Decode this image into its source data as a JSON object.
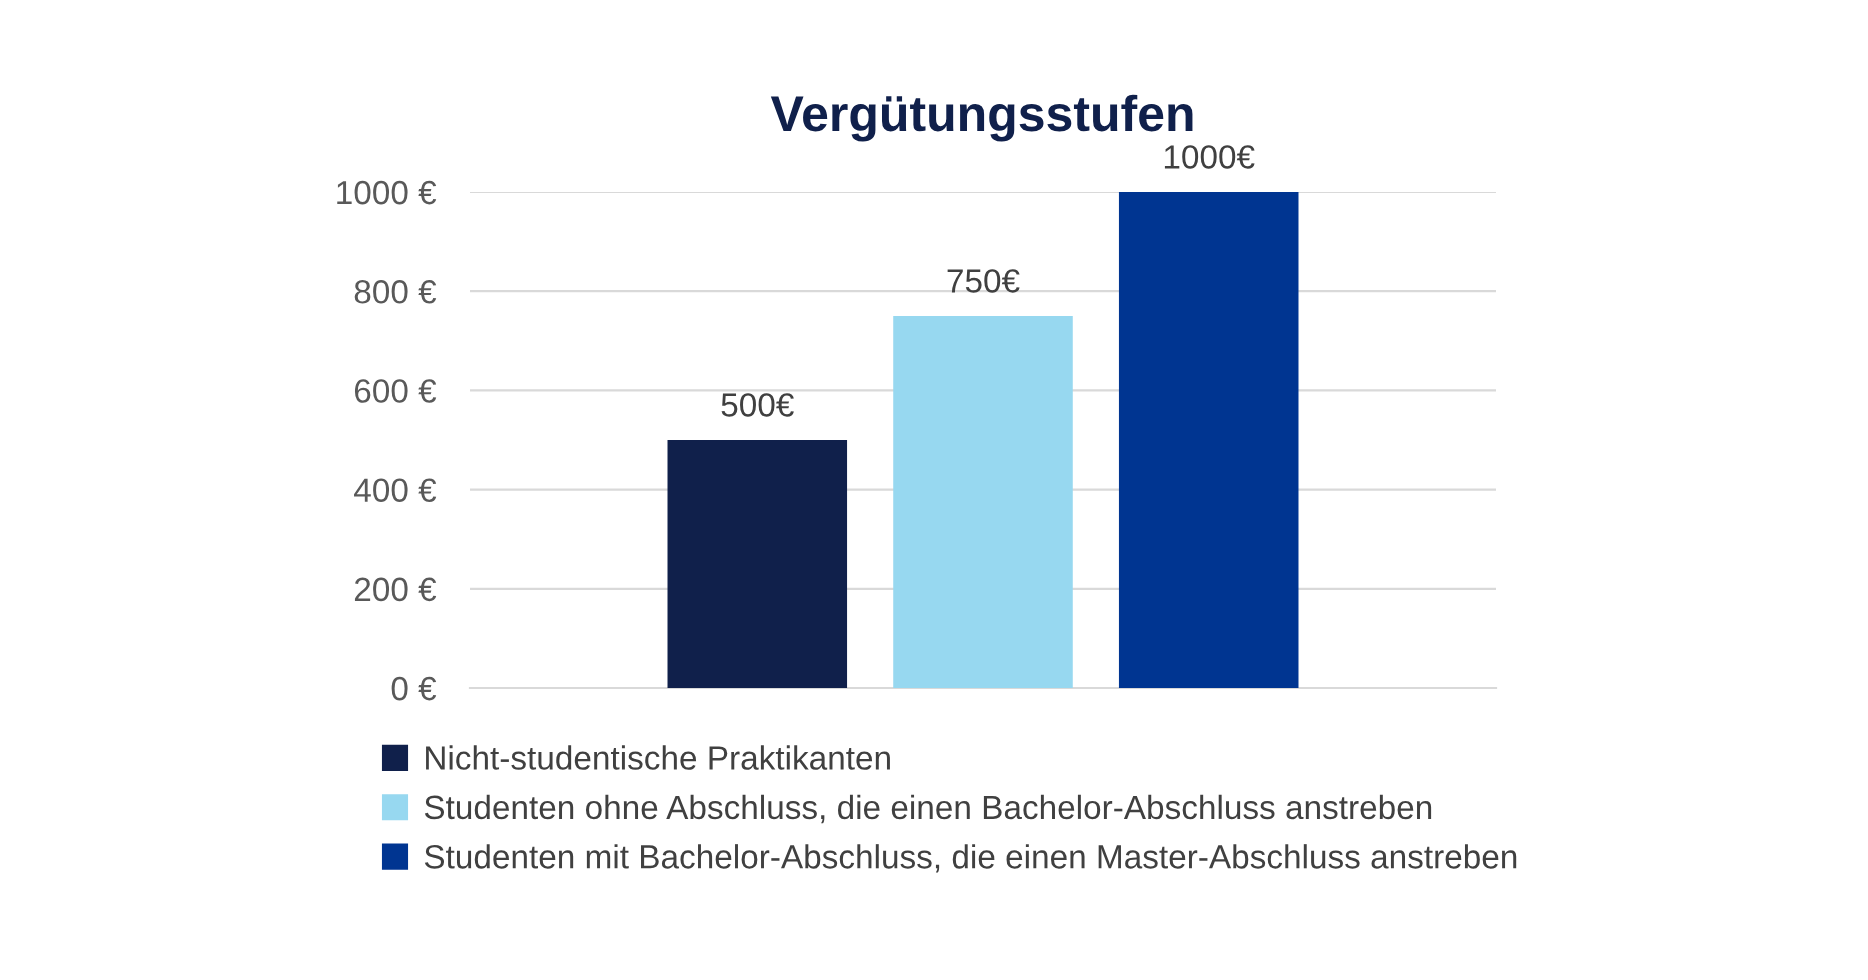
{
  "chart_data": {
    "type": "bar",
    "title": "Vergütungsstufen",
    "categories": [
      null
    ],
    "series": [
      {
        "name": "Nicht-studentische Praktikanten",
        "color": "#10204b",
        "values": [
          500
        ],
        "value_labels": [
          "500€"
        ]
      },
      {
        "name": "Studenten ohne Abschluss, die einen Bachelor-Abschluss anstreben",
        "color": "#97d8f0",
        "values": [
          750
        ],
        "value_labels": [
          "750€"
        ]
      },
      {
        "name": "Studenten mit Bachelor-Abschluss, die einen Master-Abschluss anstreben",
        "color": "#003591",
        "values": [
          1000
        ],
        "value_labels": [
          "1000€"
        ]
      }
    ],
    "ylim": [
      0,
      1000
    ],
    "yticks": [
      {
        "value": 0,
        "label": "0 €"
      },
      {
        "value": 200,
        "label": "200 €"
      },
      {
        "value": 400,
        "label": "400 €"
      },
      {
        "value": 600,
        "label": "600 €"
      },
      {
        "value": 800,
        "label": "800 €"
      },
      {
        "value": 1000,
        "label": "1000 €"
      }
    ],
    "grid": "y",
    "legend": "bottom"
  }
}
